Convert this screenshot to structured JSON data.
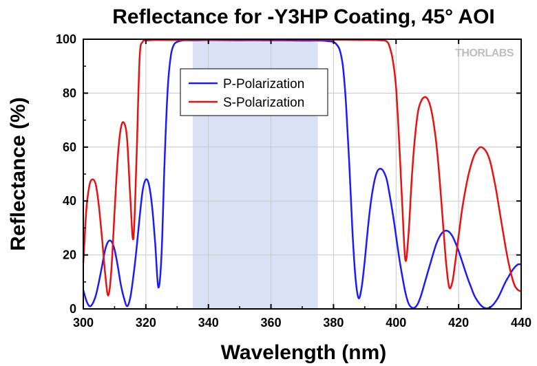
{
  "chart_data": {
    "type": "line",
    "title": "Reflectance for -Y3HP Coating, 45° AOI",
    "xlabel": "Wavelength (nm)",
    "ylabel": "Reflectance (%)",
    "xlim": [
      300,
      440
    ],
    "ylim": [
      0,
      100
    ],
    "xticks": [
      "300",
      "320",
      "340",
      "360",
      "380",
      "400",
      "420",
      "440"
    ],
    "yticks": [
      "0",
      "20",
      "40",
      "60",
      "80",
      "100"
    ],
    "grid": true,
    "legend_position": "top-left",
    "shaded_band": {
      "x_range": [
        335,
        375
      ],
      "color": "#d9e2f5"
    },
    "watermark": "THORLABS",
    "series": [
      {
        "name": "P-Polarization",
        "color": "#1a1aff",
        "x": [
          300,
          301,
          302,
          303,
          304,
          305,
          306,
          307,
          308,
          309,
          310,
          311,
          312,
          313,
          314,
          315,
          316,
          317,
          318,
          319,
          320,
          321,
          322,
          323,
          324,
          325,
          326,
          327,
          328,
          329,
          330,
          331,
          332,
          334,
          336,
          340,
          350,
          360,
          370,
          376,
          378,
          380,
          381,
          382,
          383,
          384,
          385,
          386,
          387,
          388,
          389,
          390,
          391,
          392,
          393,
          394,
          395,
          396,
          397,
          398,
          399,
          400,
          401,
          402,
          403,
          404,
          405,
          406,
          407,
          408,
          409,
          410,
          411,
          412,
          413,
          414,
          415,
          416,
          417,
          418,
          419,
          420,
          421,
          422,
          423,
          424,
          425,
          426,
          427,
          428,
          429,
          430,
          431,
          432,
          433,
          434,
          435,
          436,
          437,
          438,
          439,
          440
        ],
        "values": [
          7,
          3,
          1,
          2,
          5,
          10,
          16,
          22,
          25,
          25,
          22,
          16,
          9,
          4,
          1,
          4,
          12,
          22,
          34,
          44,
          48,
          46,
          38,
          24,
          8,
          20,
          55,
          82,
          94,
          98,
          99,
          99.4,
          99.6,
          99.6,
          99.6,
          99.7,
          99.6,
          99.6,
          99.5,
          99.5,
          99.3,
          99,
          98,
          96,
          90,
          76,
          55,
          30,
          12,
          4,
          8,
          18,
          30,
          40,
          47,
          51,
          52,
          51,
          48,
          42,
          35,
          27,
          19,
          12,
          6,
          2,
          0.5,
          0.5,
          2,
          5,
          9,
          13,
          17,
          21,
          24.5,
          27,
          28.5,
          29,
          28.5,
          27,
          24.5,
          21.5,
          18,
          14.5,
          11,
          8,
          5,
          3,
          1.5,
          0.5,
          0.2,
          0.5,
          1.5,
          3,
          5,
          7.5,
          10,
          12,
          14,
          15.5,
          16.5,
          16.5
        ]
      },
      {
        "name": "S-Polarization",
        "color": "#e81010",
        "x": [
          300,
          301,
          302,
          303,
          304,
          305,
          306,
          307,
          308,
          309,
          310,
          311,
          312,
          313,
          314,
          315,
          316,
          317,
          318,
          319,
          320,
          321,
          322,
          325,
          330,
          340,
          350,
          360,
          370,
          380,
          390,
          395,
          397,
          398,
          399,
          400,
          401,
          402,
          403,
          404,
          405,
          406,
          407,
          408,
          409,
          410,
          411,
          412,
          413,
          414,
          415,
          416,
          417,
          418,
          419,
          420,
          421,
          422,
          423,
          424,
          425,
          426,
          427,
          428,
          429,
          430,
          431,
          432,
          433,
          434,
          435,
          436,
          437,
          438,
          439,
          440
        ],
        "values": [
          17,
          37,
          46,
          48,
          46,
          38,
          26,
          13,
          5,
          15,
          36,
          56,
          67,
          69,
          63,
          42,
          26,
          55,
          93,
          99,
          99.5,
          99.6,
          99.7,
          99.7,
          99.7,
          99.8,
          99.8,
          99.8,
          99.8,
          99.8,
          99.7,
          99.6,
          99.2,
          97,
          92,
          82,
          62,
          38,
          18,
          28,
          48,
          63,
          73,
          77,
          78.5,
          78,
          75,
          69,
          60,
          47,
          32,
          17,
          8,
          10,
          18,
          27,
          36,
          43,
          49,
          53.5,
          57,
          59,
          60,
          59.5,
          58,
          55,
          50,
          44,
          37,
          30,
          23,
          17,
          12,
          8.5,
          7,
          6.5
        ]
      }
    ]
  }
}
